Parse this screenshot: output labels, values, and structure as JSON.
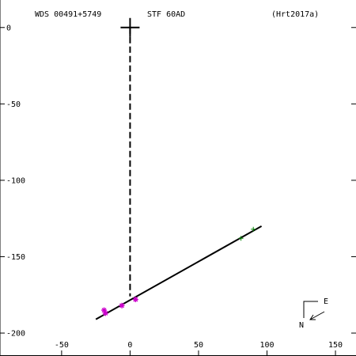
{
  "header": {
    "left": "WDS 00491+5749",
    "center": "STF  60AD",
    "right": "(Hrt2017a)"
  },
  "compass": {
    "east": "E",
    "north": "N"
  },
  "colors": {
    "fit_line": "#000000",
    "projection": "#000000",
    "obs_green": "#008000",
    "obs_magenta": "#cc00cc",
    "primary": "#000000"
  },
  "chart_data": {
    "type": "scatter",
    "title": "",
    "xlabel": "",
    "ylabel": "",
    "xlim": [
      -95,
      165
    ],
    "ylim": [
      -215,
      18
    ],
    "x_ticks": [
      -50,
      0,
      50,
      100,
      150
    ],
    "y_ticks": [
      0,
      -50,
      -100,
      -150,
      -200
    ],
    "x_tick_labels": [
      "-50",
      "0",
      "50",
      "100",
      "150"
    ],
    "y_tick_labels": [
      "0",
      "-50",
      "-100",
      "-150",
      "-200"
    ],
    "primary_star": {
      "x": 0,
      "y": 0
    },
    "fit_line": {
      "from": [
        -25,
        -191
      ],
      "to": [
        96,
        -130
      ]
    },
    "projection_line": {
      "from": [
        0,
        0
      ],
      "to": [
        0,
        -176
      ]
    },
    "series": [
      {
        "color": "green",
        "marker": "plus",
        "points": [
          [
            81,
            -138
          ],
          [
            90,
            -132
          ]
        ]
      },
      {
        "color": "magenta",
        "marker": "star",
        "points": [
          [
            -18,
            -187
          ],
          [
            -19,
            -185
          ],
          [
            -6,
            -182
          ],
          [
            4,
            -178
          ]
        ]
      }
    ]
  }
}
